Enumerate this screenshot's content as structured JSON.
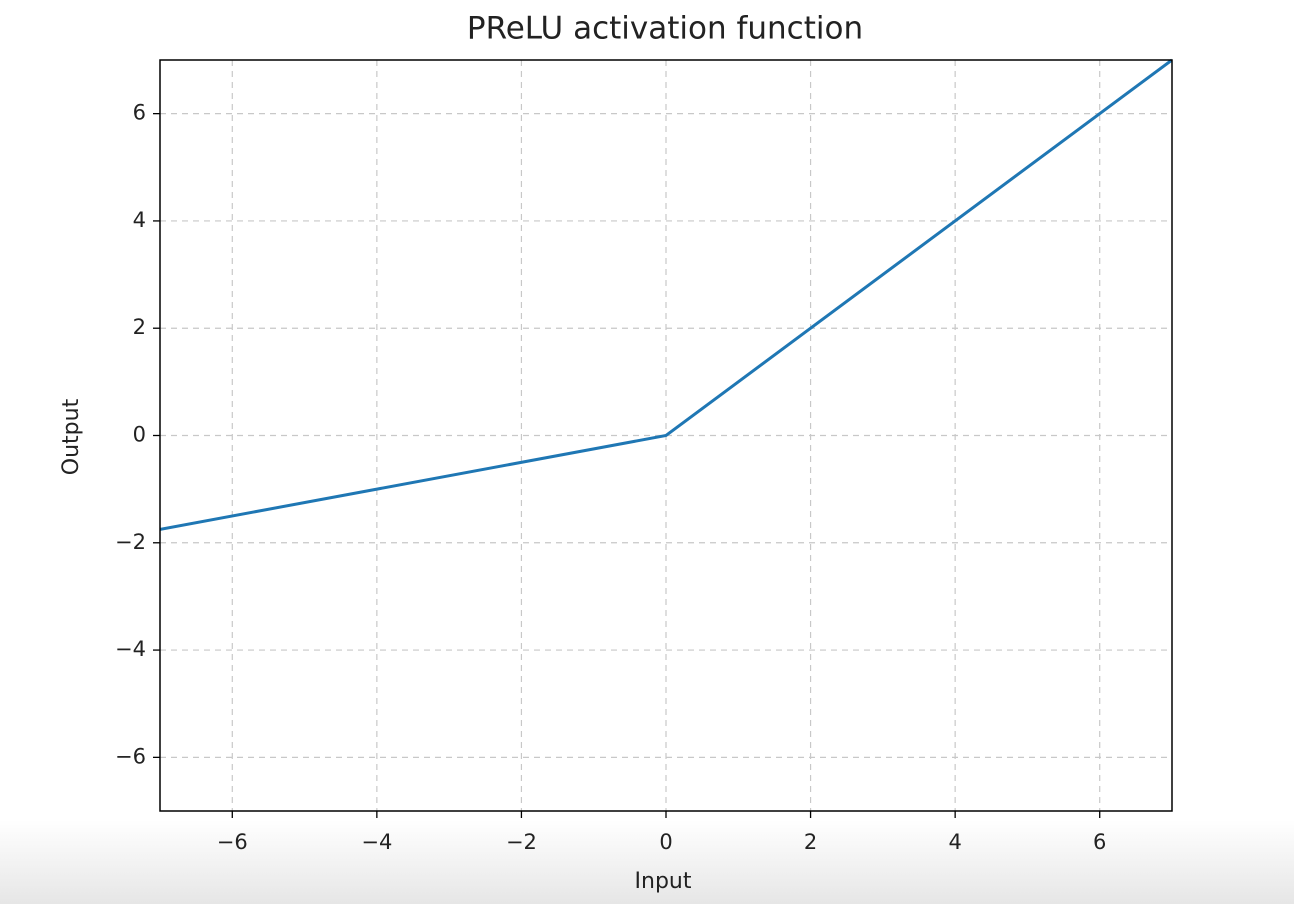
{
  "chart_data": {
    "type": "line",
    "title": "PReLU activation function",
    "x_label": "Input",
    "y_label": "Output",
    "x": [
      -7,
      0,
      7
    ],
    "series": [
      {
        "name": "PReLU",
        "color": "#1f77b4",
        "values": [
          -1.75,
          0,
          7
        ]
      }
    ],
    "xlim": [
      -7,
      7
    ],
    "ylim": [
      -7,
      7
    ],
    "xticks": [
      {
        "value": -6,
        "label": "−6"
      },
      {
        "value": -4,
        "label": "−4"
      },
      {
        "value": -2,
        "label": "−2"
      },
      0,
      2,
      4,
      6
    ],
    "yticks": [
      {
        "value": -6,
        "label": "−6"
      },
      {
        "value": -4,
        "label": "−4"
      },
      {
        "value": -2,
        "label": "−2"
      },
      0,
      2,
      4,
      6
    ],
    "grid": true
  }
}
